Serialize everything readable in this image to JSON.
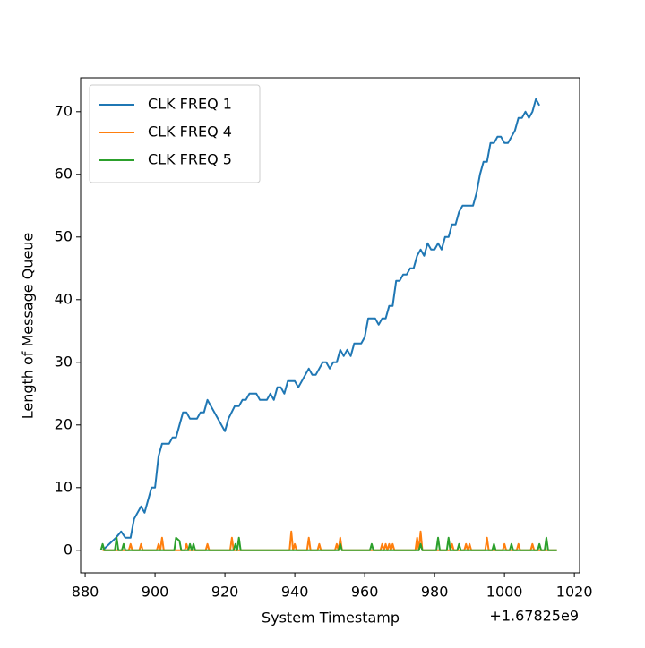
{
  "chart_data": {
    "type": "line",
    "xlabel": "System Timestamp",
    "ylabel": "Length of Message Queue",
    "x_offset_text": "+1.67825e9",
    "xlim": [
      878.7,
      1021.5
    ],
    "ylim": [
      -3.6,
      75.4
    ],
    "xticks": [
      880,
      900,
      920,
      940,
      960,
      980,
      1000,
      1020
    ],
    "yticks": [
      0,
      10,
      20,
      30,
      40,
      50,
      60,
      70
    ],
    "grid": false,
    "legend": "upper left",
    "series": [
      {
        "name": "CLK FREQ 1",
        "color": "#1f77b4",
        "x": [
          885,
          888.8,
          890.3,
          891.5,
          893,
          894,
          896,
          897,
          899,
          900,
          901,
          902,
          904,
          905,
          906,
          908,
          909,
          910,
          912,
          913,
          914,
          915,
          920,
          921,
          922.8,
          924,
          925,
          926,
          927,
          929,
          930,
          932,
          933,
          934,
          935,
          936,
          937,
          938,
          940,
          941,
          944,
          945,
          946,
          948,
          949,
          950,
          951,
          952,
          953,
          954,
          955,
          956,
          957,
          959,
          960,
          961,
          963,
          964,
          965,
          966,
          967,
          968,
          969,
          970,
          971,
          972,
          973,
          974,
          975,
          976,
          977,
          978,
          979,
          980,
          981,
          982,
          983,
          984,
          985,
          986,
          987,
          988,
          991,
          992,
          993,
          994,
          995,
          996,
          997,
          998,
          999,
          1000,
          1001,
          1003,
          1004,
          1005,
          1006,
          1007,
          1008,
          1009,
          1010
        ],
        "values": [
          0,
          2,
          3,
          2,
          2,
          5,
          7,
          6,
          10,
          10,
          15,
          17,
          17,
          18,
          18,
          22,
          22,
          21,
          21,
          22,
          22,
          24,
          19,
          21,
          23,
          23,
          24,
          24,
          25,
          25,
          24,
          24,
          25,
          24,
          26,
          26,
          25,
          27,
          27,
          26,
          29,
          28,
          28,
          30,
          30,
          29,
          30,
          30,
          32,
          31,
          32,
          31,
          33,
          33,
          34,
          37,
          37,
          36,
          37,
          37,
          39,
          39,
          43,
          43,
          44,
          44,
          45,
          45,
          47,
          48,
          47,
          49,
          48,
          48,
          49,
          48,
          50,
          50,
          52,
          52,
          54,
          55,
          55,
          57,
          60,
          62,
          62,
          65,
          65,
          66,
          66,
          65,
          65,
          67,
          69,
          69,
          70,
          69,
          70,
          72,
          71
        ]
      },
      {
        "name": "CLK FREQ 4",
        "color": "#ff7f0e",
        "x": [
          885,
          892.5,
          893,
          893.5,
          895.5,
          896,
          896.5,
          900.5,
          901,
          901.5,
          902,
          902.5,
          908.5,
          909,
          909.5,
          914.5,
          915,
          915.5,
          921.5,
          922,
          922.5,
          938.5,
          939,
          939.5,
          940,
          940.5,
          943.5,
          944,
          944.5,
          946.5,
          947,
          947.5,
          951.5,
          952,
          952.5,
          953,
          953.5,
          964.5,
          965,
          965.5,
          966,
          966.5,
          967,
          967.5,
          968,
          968.5,
          974.5,
          975,
          975.5,
          976,
          976.5,
          984.5,
          985,
          985.5,
          988.5,
          989,
          989.5,
          990,
          990.5,
          994.5,
          995,
          995.5,
          999.5,
          1000,
          1000.5,
          1003.5,
          1004,
          1004.5,
          1007.5,
          1008,
          1008.5,
          1015
        ],
        "values": [
          0,
          0,
          1,
          0,
          0,
          1,
          0,
          0,
          1,
          0,
          2,
          0,
          0,
          1,
          0,
          0,
          1,
          0,
          0,
          2,
          0,
          0,
          3,
          0,
          1,
          0,
          0,
          2,
          0,
          0,
          1,
          0,
          0,
          1,
          0,
          2,
          0,
          0,
          1,
          0,
          1,
          0,
          1,
          0,
          1,
          0,
          0,
          2,
          0,
          3,
          0,
          0,
          1,
          0,
          0,
          1,
          0,
          1,
          0,
          0,
          2,
          0,
          0,
          1,
          0,
          0,
          1,
          0,
          0,
          1,
          0,
          0
        ]
      },
      {
        "name": "CLK FREQ 5",
        "color": "#2ca02c",
        "x": [
          884.5,
          885,
          885.5,
          888.5,
          889,
          889.5,
          890.5,
          891,
          891.5,
          905.5,
          906,
          907,
          907.5,
          909.5,
          910,
          910.5,
          911,
          911.5,
          922.5,
          923,
          923.5,
          924,
          924.5,
          952.5,
          953,
          953.5,
          961.5,
          962,
          962.5,
          975.5,
          976,
          976.5,
          980.5,
          981,
          981.5,
          983.5,
          984,
          984.5,
          986.5,
          987,
          987.5,
          996.5,
          997,
          997.5,
          1001.5,
          1002,
          1002.5,
          1009.5,
          1010,
          1010.5,
          1011.5,
          1012,
          1012.5,
          1015
        ],
        "values": [
          0,
          1,
          0,
          0,
          2,
          0,
          0,
          1,
          0,
          0,
          2,
          1.5,
          0,
          0,
          1,
          0,
          1,
          0,
          0,
          1,
          0,
          2,
          0,
          0,
          1,
          0,
          0,
          1,
          0,
          0,
          1,
          0,
          0,
          2,
          0,
          0,
          2,
          0,
          0,
          1,
          0,
          0,
          1,
          0,
          0,
          1,
          0,
          0,
          1,
          0,
          0,
          2,
          0,
          0
        ]
      }
    ]
  }
}
